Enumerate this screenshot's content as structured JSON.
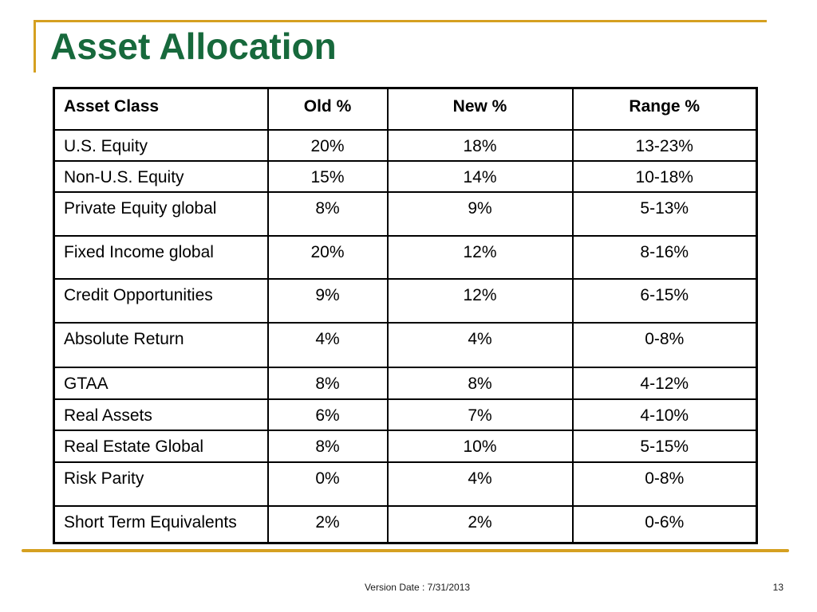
{
  "slide": {
    "title": "Asset Allocation",
    "footer": {
      "version_date": "Version Date : 7/31/2013",
      "page_number": "13"
    },
    "colors": {
      "title_green": "#17693c",
      "accent_gold": "#d5a021",
      "table_border": "#000000",
      "text": "#000000"
    }
  },
  "chart_data": {
    "type": "table",
    "title": "Asset Allocation",
    "headers": [
      "Asset Class",
      "Old %",
      "New %",
      "Range %"
    ],
    "rows": [
      [
        "U.S. Equity",
        "20%",
        "18%",
        "13-23%"
      ],
      [
        "Non-U.S. Equity",
        "15%",
        "14%",
        "10-18%"
      ],
      [
        "Private Equity global",
        "8%",
        "9%",
        "5-13%"
      ],
      [
        "Fixed Income global",
        "20%",
        "12%",
        "8-16%"
      ],
      [
        "Credit Opportunities",
        "9%",
        "12%",
        "6-15%"
      ],
      [
        "Absolute Return",
        "4%",
        "4%",
        "0-8%"
      ],
      [
        "GTAA",
        "8%",
        "8%",
        "4-12%"
      ],
      [
        "Real Assets",
        "6%",
        "7%",
        "4-10%"
      ],
      [
        "Real Estate Global",
        "8%",
        "10%",
        "5-15%"
      ],
      [
        "Risk Parity",
        "0%",
        "4%",
        "0-8%"
      ],
      [
        "Short Term Equivalents",
        "2%",
        "2%",
        "0-6%"
      ]
    ]
  }
}
